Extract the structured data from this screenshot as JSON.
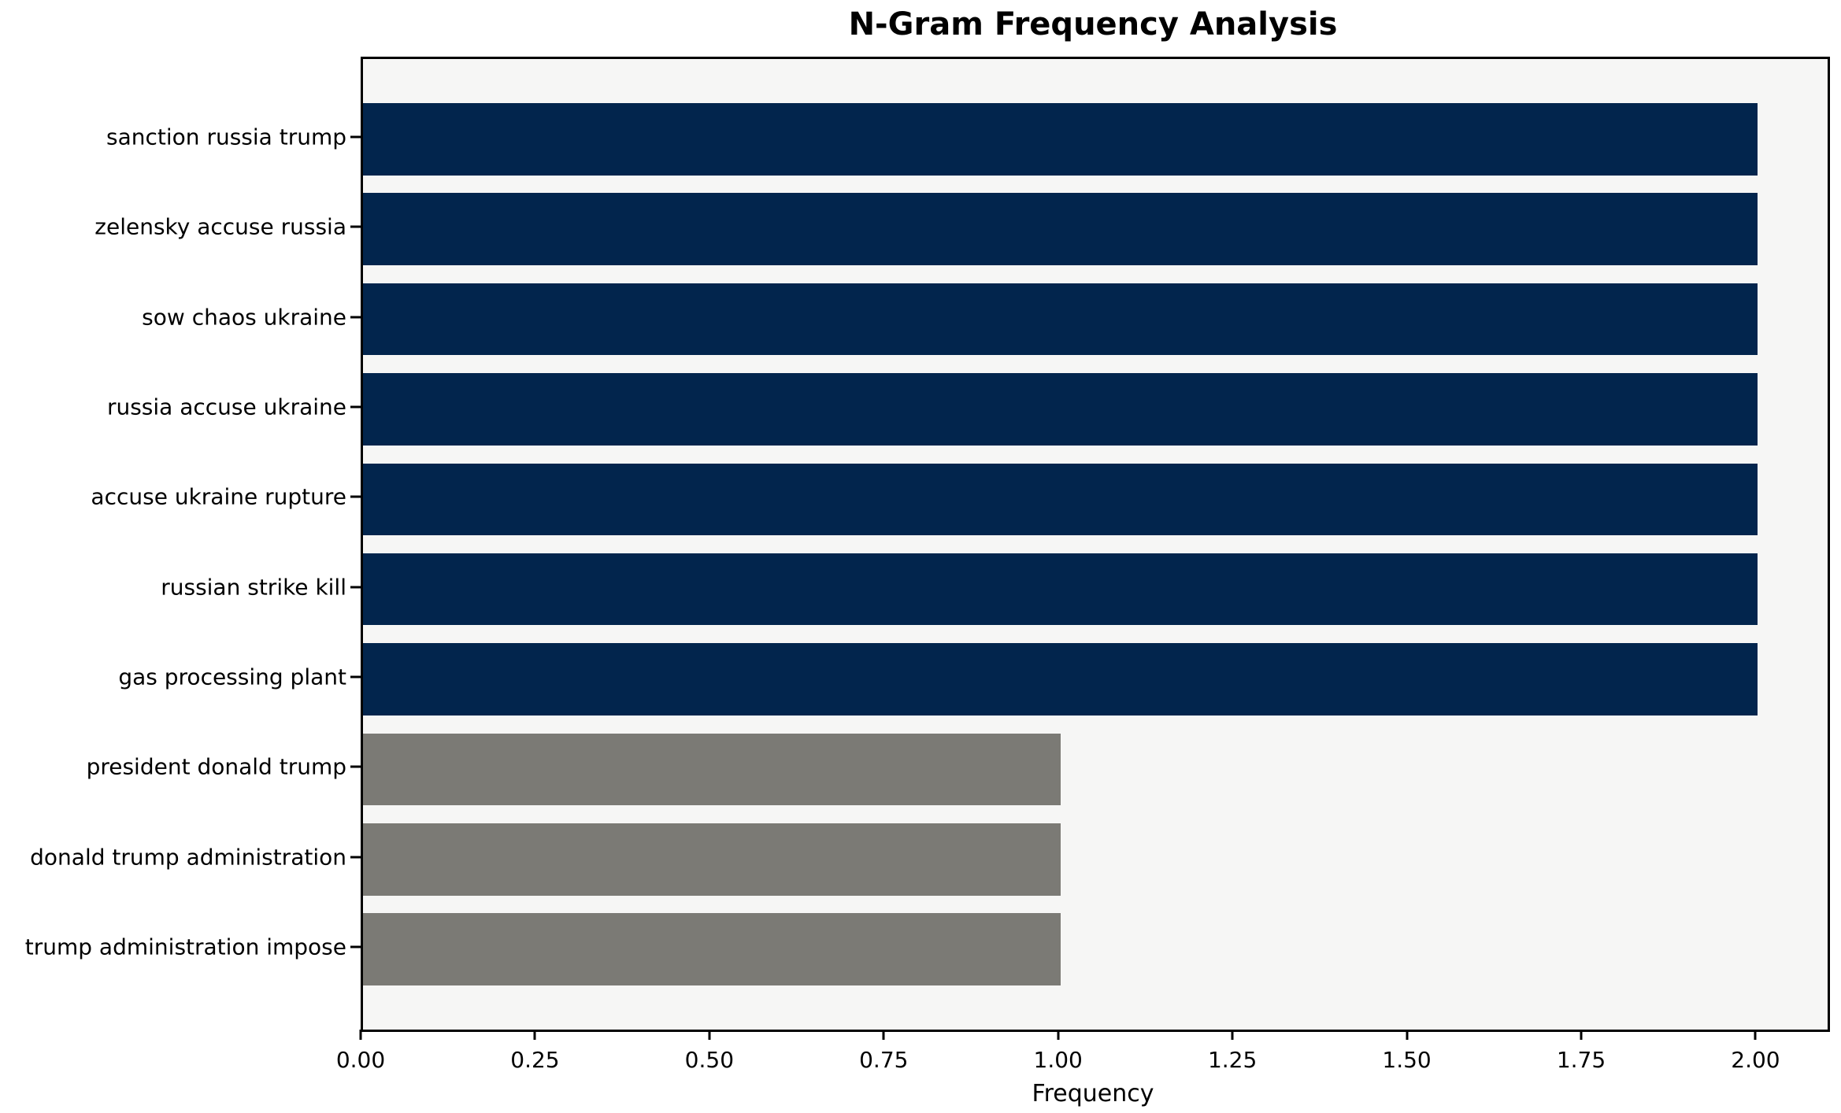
{
  "colors": {
    "navy_bar": "#02254d",
    "gray_bar": "#7b7a75",
    "plot_background": "#f6f6f5",
    "spine": "#000000",
    "text": "#000000"
  },
  "chart_data": {
    "type": "bar",
    "orientation": "horizontal",
    "title": "N-Gram Frequency Analysis",
    "xlabel": "Frequency",
    "ylabel": "",
    "categories": [
      "sanction russia trump",
      "zelensky accuse russia",
      "sow chaos ukraine",
      "russia accuse ukraine",
      "accuse ukraine rupture",
      "russian strike kill",
      "gas processing plant",
      "president donald trump",
      "donald trump administration",
      "trump administration impose"
    ],
    "values": [
      2,
      2,
      2,
      2,
      2,
      2,
      2,
      1,
      1,
      1
    ],
    "bar_colors": [
      "#02254d",
      "#02254d",
      "#02254d",
      "#02254d",
      "#02254d",
      "#02254d",
      "#02254d",
      "#7b7a75",
      "#7b7a75",
      "#7b7a75"
    ],
    "xlim": [
      0,
      2.1
    ],
    "xticks": {
      "values": [
        0,
        0.25,
        0.5,
        0.75,
        1.0,
        1.25,
        1.5,
        1.75,
        2.0
      ],
      "labels": [
        "0.00",
        "0.25",
        "0.50",
        "0.75",
        "1.00",
        "1.25",
        "1.50",
        "1.75",
        "2.00"
      ]
    },
    "grid": false,
    "legend": null
  }
}
